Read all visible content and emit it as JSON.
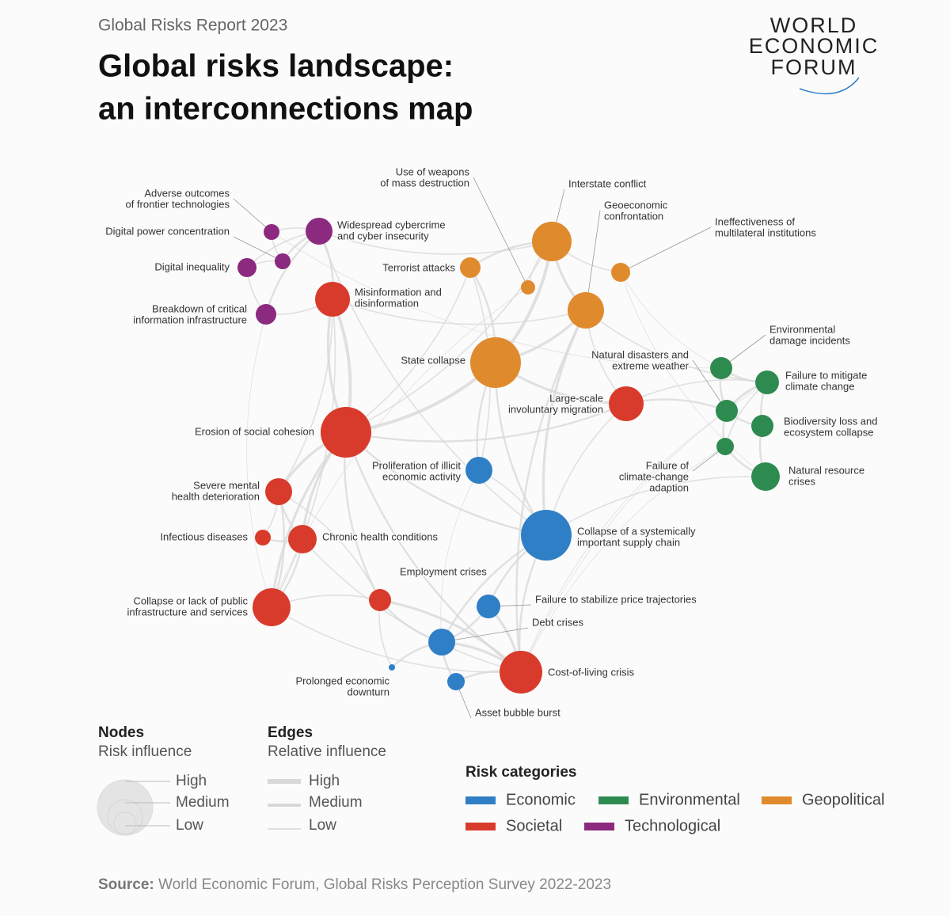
{
  "header": {
    "report": "Global Risks Report 2023",
    "title": [
      "Global risks landscape:",
      "an interconnections map"
    ],
    "logo": [
      "WORLD",
      "ECONOMIC",
      "FORUM"
    ]
  },
  "categories": [
    {
      "name": "Economic",
      "color": "#2f7fc6"
    },
    {
      "name": "Environmental",
      "color": "#2e8b4f"
    },
    {
      "name": "Geopolitical",
      "color": "#e08a2e"
    },
    {
      "name": "Societal",
      "color": "#d83b2b"
    },
    {
      "name": "Technological",
      "color": "#8b2a7e"
    }
  ],
  "nodes": [
    {
      "label": [
        "Adverse outcomes",
        "of frontier technologies"
      ],
      "category": "Technological"
    },
    {
      "label": [
        "Digital power concentration"
      ],
      "category": "Technological"
    },
    {
      "label": [
        "Digital inequality"
      ],
      "category": "Technological"
    },
    {
      "label": [
        "Breakdown of critical",
        "information infrastructure"
      ],
      "category": "Technological"
    },
    {
      "label": [
        "Widespread cybercrime",
        "and cyber insecurity"
      ],
      "category": "Technological"
    },
    {
      "label": [
        "Misinformation and",
        "disinformation"
      ],
      "category": "Societal"
    },
    {
      "label": [
        "Terrorist attacks"
      ],
      "category": "Geopolitical"
    },
    {
      "label": [
        "Use of weapons",
        "of mass destruction"
      ],
      "category": "Geopolitical"
    },
    {
      "label": [
        "Interstate conflict"
      ],
      "category": "Geopolitical"
    },
    {
      "label": [
        "Geoeconomic",
        "confrontation"
      ],
      "category": "Geopolitical"
    },
    {
      "label": [
        "Ineffectiveness of",
        "multilateral institutions"
      ],
      "category": "Geopolitical"
    },
    {
      "label": [
        "State collapse"
      ],
      "category": "Geopolitical"
    },
    {
      "label": [
        "Environmental",
        "damage incidents"
      ],
      "category": "Environmental"
    },
    {
      "label": [
        "Failure to mitigate",
        "climate change"
      ],
      "category": "Environmental"
    },
    {
      "label": [
        "Natural disasters and",
        "extreme weather"
      ],
      "category": "Environmental"
    },
    {
      "label": [
        "Biodiversity loss and",
        "ecosystem collapse"
      ],
      "category": "Environmental"
    },
    {
      "label": [
        "Failure of",
        "climate-change",
        "adaption"
      ],
      "category": "Environmental"
    },
    {
      "label": [
        "Natural resource",
        "crises"
      ],
      "category": "Environmental"
    },
    {
      "label": [
        "Large-scale",
        "involuntary migration"
      ],
      "category": "Societal"
    },
    {
      "label": [
        "Erosion of social cohesion"
      ],
      "category": "Societal"
    },
    {
      "label": [
        "Proliferation of illicit",
        "economic activity"
      ],
      "category": "Economic"
    },
    {
      "label": [
        "Severe mental",
        "health deterioration"
      ],
      "category": "Societal"
    },
    {
      "label": [
        "Infectious diseases"
      ],
      "category": "Societal"
    },
    {
      "label": [
        "Chronic health conditions"
      ],
      "category": "Societal"
    },
    {
      "label": [
        "Collapse of a systemically",
        "important supply chain"
      ],
      "category": "Economic"
    },
    {
      "label": [
        "Employment crises"
      ],
      "category": "Societal"
    },
    {
      "label": [
        "Collapse or lack of public",
        "infrastructure and services"
      ],
      "category": "Societal"
    },
    {
      "label": [
        "Failure to stabilize price trajectories"
      ],
      "category": "Economic"
    },
    {
      "label": [
        "Debt crises"
      ],
      "category": "Economic"
    },
    {
      "label": [
        "Prolonged economic",
        "downturn"
      ],
      "category": "Economic"
    },
    {
      "label": [
        "Asset bubble burst"
      ],
      "category": "Economic"
    },
    {
      "label": [
        "Cost-of-living crisis"
      ],
      "category": "Societal"
    }
  ],
  "legend": {
    "nodes": {
      "title": "Nodes",
      "subtitle": "Risk influence",
      "levels": [
        "High",
        "Medium",
        "Low"
      ]
    },
    "edges": {
      "title": "Edges",
      "subtitle": "Relative influence",
      "levels": [
        "High",
        "Medium",
        "Low"
      ]
    },
    "categories_title": "Risk categories"
  },
  "source": {
    "label": "Source:",
    "text": "World Economic Forum, Global Risks Perception Survey 2022-2023"
  }
}
